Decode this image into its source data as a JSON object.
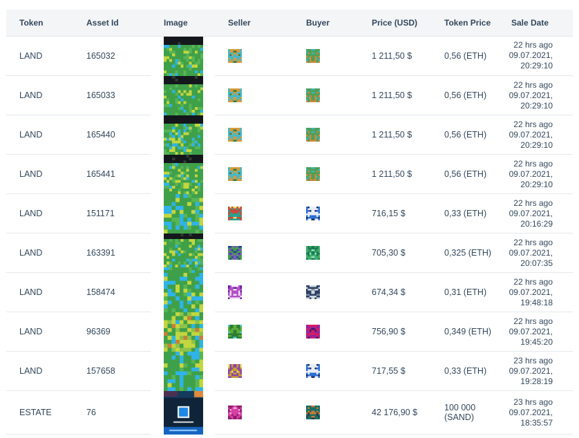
{
  "theme": {
    "header_bg": "#f3f5f7",
    "text_color": "#33475b",
    "border_color": "#e4e7ea"
  },
  "table": {
    "headers": {
      "token": "Token",
      "asset_id": "Asset Id",
      "image": "Image",
      "seller": "Seller",
      "buyer": "Buyer",
      "price_usd": "Price (USD)",
      "token_price": "Token Price",
      "sale_date": "Sale Date"
    },
    "rows": [
      {
        "token": "LAND",
        "asset_id": "165032",
        "price_usd": "1 211,50 $",
        "token_price": "0,56 (ETH)",
        "sale_ago": "22 hrs ago",
        "sale_date": "09.07.2021,",
        "sale_time": "20:29:10",
        "image": {
          "type": "map",
          "seed": 11,
          "grid": 14,
          "band_rows": 3,
          "band_color": "#14181c",
          "palette": [
            [
              "#3fa04a",
              62
            ],
            [
              "#57b554",
              14
            ],
            [
              "#2fb3e8",
              9
            ],
            [
              "#c3d63e",
              15
            ]
          ]
        },
        "seller": {
          "seed": 101,
          "colors": [
            "#45b8c9",
            "#d89b3a",
            "#2e7d46"
          ]
        },
        "buyer": {
          "seed": 102,
          "colors": [
            "#d08a3e",
            "#4f9f57",
            "#3fb6ae"
          ]
        }
      },
      {
        "token": "LAND",
        "asset_id": "165033",
        "price_usd": "1 211,50 $",
        "token_price": "0,56 (ETH)",
        "sale_ago": "22 hrs ago",
        "sale_date": "09.07.2021,",
        "sale_time": "20:29:10",
        "image": {
          "type": "map",
          "seed": 12,
          "grid": 14,
          "band_rows": 3,
          "band_color": "#14181c",
          "palette": [
            [
              "#3fa04a",
              62
            ],
            [
              "#57b554",
              14
            ],
            [
              "#2fb3e8",
              9
            ],
            [
              "#c3d63e",
              15
            ]
          ]
        },
        "seller": {
          "seed": 101,
          "colors": [
            "#45b8c9",
            "#d89b3a",
            "#2e7d46"
          ]
        },
        "buyer": {
          "seed": 102,
          "colors": [
            "#d08a3e",
            "#4f9f57",
            "#3fb6ae"
          ]
        }
      },
      {
        "token": "LAND",
        "asset_id": "165440",
        "price_usd": "1 211,50 $",
        "token_price": "0,56 (ETH)",
        "sale_ago": "22 hrs ago",
        "sale_date": "09.07.2021,",
        "sale_time": "20:29:10",
        "image": {
          "type": "map",
          "seed": 13,
          "grid": 14,
          "band_rows": 3,
          "band_color": "#14181c",
          "palette": [
            [
              "#3fa04a",
              60
            ],
            [
              "#57b554",
              14
            ],
            [
              "#2fb3e8",
              11
            ],
            [
              "#c3d63e",
              15
            ]
          ]
        },
        "seller": {
          "seed": 101,
          "colors": [
            "#45b8c9",
            "#d89b3a",
            "#2e7d46"
          ]
        },
        "buyer": {
          "seed": 102,
          "colors": [
            "#d08a3e",
            "#4f9f57",
            "#3fb6ae"
          ]
        }
      },
      {
        "token": "LAND",
        "asset_id": "165441",
        "price_usd": "1 211,50 $",
        "token_price": "0,56 (ETH)",
        "sale_ago": "22 hrs ago",
        "sale_date": "09.07.2021,",
        "sale_time": "20:29:10",
        "image": {
          "type": "map",
          "seed": 14,
          "grid": 14,
          "band_rows": 3,
          "band_color": "#14181c",
          "palette": [
            [
              "#3fa04a",
              60
            ],
            [
              "#57b554",
              14
            ],
            [
              "#2fb3e8",
              11
            ],
            [
              "#c3d63e",
              15
            ]
          ]
        },
        "seller": {
          "seed": 101,
          "colors": [
            "#45b8c9",
            "#d89b3a",
            "#2e7d46"
          ]
        },
        "buyer": {
          "seed": 102,
          "colors": [
            "#d08a3e",
            "#4f9f57",
            "#3fb6ae"
          ]
        }
      },
      {
        "token": "LAND",
        "asset_id": "151171",
        "price_usd": "716,15 $",
        "token_price": "0,33 (ETH)",
        "sale_ago": "22 hrs ago",
        "sale_date": "09.07.2021,",
        "sale_time": "20:16:29",
        "image": {
          "type": "map",
          "seed": 15,
          "grid": 10,
          "band_rows": 0,
          "band_color": "#14181c",
          "palette": [
            [
              "#3fa04a",
              42
            ],
            [
              "#2fb3e8",
              30
            ],
            [
              "#c3d63e",
              16
            ],
            [
              "#57b554",
              12
            ]
          ]
        },
        "seller": {
          "seed": 103,
          "colors": [
            "#c84a3c",
            "#2ba08f",
            "#e0e26a"
          ]
        },
        "buyer": {
          "seed": 205,
          "colors": [
            "#2d6fd3",
            "#e8eef7",
            "#1d2f5e"
          ]
        }
      },
      {
        "token": "LAND",
        "asset_id": "163391",
        "price_usd": "705,30 $",
        "token_price": "0,325 (ETH)",
        "sale_ago": "22 hrs ago",
        "sale_date": "09.07.2021,",
        "sale_time": "20:07:35",
        "image": {
          "type": "map",
          "seed": 16,
          "grid": 14,
          "band_rows": 2,
          "band_color": "#14181c",
          "palette": [
            [
              "#3fa04a",
              64
            ],
            [
              "#c3d63e",
              16
            ],
            [
              "#57b554",
              12
            ],
            [
              "#2fb3e8",
              8
            ]
          ]
        },
        "seller": {
          "seed": 104,
          "colors": [
            "#7e57c2",
            "#43a047",
            "#2c3e9e"
          ]
        },
        "buyer": {
          "seed": 106,
          "colors": [
            "#3fae6a",
            "#1c7c54",
            "#8fe3c0"
          ]
        }
      },
      {
        "token": "LAND",
        "asset_id": "158474",
        "price_usd": "674,34 $",
        "token_price": "0,31 (ETH)",
        "sale_ago": "22 hrs ago",
        "sale_date": "09.07.2021,",
        "sale_time": "19:48:18",
        "image": {
          "type": "map",
          "seed": 17,
          "grid": 10,
          "band_rows": 0,
          "band_color": "#14181c",
          "palette": [
            [
              "#3fa04a",
              55
            ],
            [
              "#2fb3e8",
              20
            ],
            [
              "#c3d63e",
              13
            ],
            [
              "#57b554",
              12
            ]
          ]
        },
        "seller": {
          "seed": 107,
          "colors": [
            "#b44fc7",
            "#f2e6f5",
            "#6a1b9a"
          ]
        },
        "buyer": {
          "seed": 108,
          "colors": [
            "#2c3e66",
            "#cfd8dc",
            "#78909c"
          ]
        }
      },
      {
        "token": "LAND",
        "asset_id": "96369",
        "price_usd": "756,90 $",
        "token_price": "0,349 (ETH)",
        "sale_ago": "22 hrs ago",
        "sale_date": "09.07.2021,",
        "sale_time": "19:45:20",
        "image": {
          "type": "map",
          "seed": 18,
          "grid": 10,
          "band_rows": 0,
          "band_color": "#14181c",
          "palette": [
            [
              "#c3d63e",
              34
            ],
            [
              "#3fa04a",
              36
            ],
            [
              "#8bc34a",
              16
            ],
            [
              "#2fb3e8",
              8
            ],
            [
              "#c77f3a",
              6
            ]
          ]
        },
        "seller": {
          "seed": 109,
          "colors": [
            "#5fae3c",
            "#2e7d32",
            "#4dd0e1"
          ]
        },
        "buyer": {
          "seed": 110,
          "colors": [
            "#8e24aa",
            "#d81b60",
            "#32186b"
          ]
        }
      },
      {
        "token": "LAND",
        "asset_id": "157658",
        "price_usd": "717,55 $",
        "token_price": "0,33 (ETH)",
        "sale_ago": "23 hrs ago",
        "sale_date": "09.07.2021,",
        "sale_time": "19:28:19",
        "image": {
          "type": "map",
          "seed": 19,
          "grid": 10,
          "band_rows": 0,
          "band_color": "#14181c",
          "palette": [
            [
              "#3fa04a",
              50
            ],
            [
              "#2fb3e8",
              28
            ],
            [
              "#57b554",
              12
            ],
            [
              "#c3d63e",
              10
            ]
          ]
        },
        "seller": {
          "seed": 111,
          "colors": [
            "#c9a227",
            "#8e44ad",
            "#f1e06a"
          ]
        },
        "buyer": {
          "seed": 205,
          "colors": [
            "#2d6fd3",
            "#e8eef7",
            "#1d2f5e"
          ]
        }
      },
      {
        "token": "ESTATE",
        "asset_id": "76",
        "price_usd": "42 176,90 $",
        "token_price": "100 000 (SAND)",
        "sale_ago": "23 hrs ago",
        "sale_date": "09.07.2021,",
        "sale_time": "18:35:57",
        "image": {
          "type": "estate",
          "logo": "S",
          "bg": "#0f2438",
          "band": "#1565c0",
          "logo_bg": "#1e88e5",
          "accent": "#e08a3c"
        },
        "seller": {
          "seed": 112,
          "colors": [
            "#d63fa6",
            "#8e1e6b",
            "#f2a9d0"
          ]
        },
        "buyer": {
          "seed": 113,
          "colors": [
            "#d07a33",
            "#186f63",
            "#27384a"
          ]
        }
      }
    ]
  }
}
